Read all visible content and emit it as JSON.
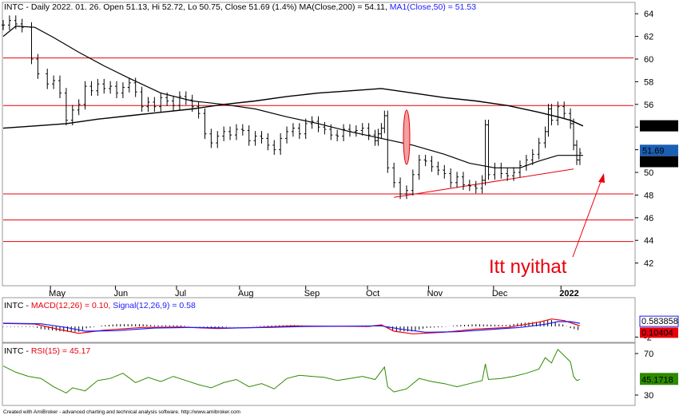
{
  "header": {
    "price": "INTC - Daily 2022. 01. 26. Open 51.13, Hi 52.72, Lo 50.75, Close 51.69 (1.4%) MA(Close,200) = 54.11, ",
    "ma50": "MA1(Close,50) = 51.53"
  },
  "macd_header": {
    "prefix": "INTC - ",
    "macd": "MACD(12,26) = 0.10, ",
    "signal": "Signal(12,26,9) = 0.58"
  },
  "rsi_header": {
    "prefix": "INTC - ",
    "rsi": "RSI(15) = 45.17"
  },
  "annotation": "Itt nyithat",
  "footer": "Created with AmiBroker - advanced charting and technical analysis software. http://www.amibroker.com",
  "colors": {
    "price_bars": "#000000",
    "ma": "#000000",
    "lines": "#e8000b",
    "macd": "#e8000b",
    "signal": "#1a1aff",
    "rsi": "#2e8b00",
    "ma200_label_bg": "#000000",
    "close_label_bg": "#1a5fb4",
    "ma50_label_bg": "#000000"
  },
  "chart_data": [
    {
      "type": "candlestick",
      "ylim": [
        40,
        65
      ],
      "yticks": [
        42,
        44,
        46,
        48,
        50,
        52,
        54,
        56,
        58,
        60,
        62,
        64
      ],
      "months": [
        "May",
        "Jun",
        "Jul",
        "Aug",
        "Sep",
        "Oct",
        "Nov",
        "Dec",
        "2022"
      ],
      "horizontal_lines": [
        60.1,
        55.9,
        48.1,
        45.8,
        43.9
      ],
      "trendline": [
        [
          0.62,
          47.8
        ],
        [
          0.905,
          50.3
        ]
      ],
      "ma200": [
        [
          0.0,
          53.9
        ],
        [
          0.05,
          54.1
        ],
        [
          0.1,
          54.3
        ],
        [
          0.15,
          54.7
        ],
        [
          0.2,
          55.0
        ],
        [
          0.25,
          55.3
        ],
        [
          0.3,
          55.6
        ],
        [
          0.35,
          56.0
        ],
        [
          0.4,
          56.3
        ],
        [
          0.45,
          56.7
        ],
        [
          0.5,
          57.0
        ],
        [
          0.55,
          57.2
        ],
        [
          0.6,
          57.4
        ],
        [
          0.65,
          57.0
        ],
        [
          0.7,
          56.6
        ],
        [
          0.75,
          56.3
        ],
        [
          0.8,
          55.9
        ],
        [
          0.85,
          55.3
        ],
        [
          0.88,
          54.9
        ],
        [
          0.9,
          54.6
        ],
        [
          0.92,
          54.1
        ]
      ],
      "ma50": [
        [
          0.0,
          62.0
        ],
        [
          0.02,
          62.9
        ],
        [
          0.05,
          62.8
        ],
        [
          0.08,
          61.9
        ],
        [
          0.12,
          60.6
        ],
        [
          0.16,
          59.4
        ],
        [
          0.2,
          58.3
        ],
        [
          0.25,
          57.0
        ],
        [
          0.3,
          56.3
        ],
        [
          0.35,
          56.0
        ],
        [
          0.4,
          55.6
        ],
        [
          0.45,
          54.9
        ],
        [
          0.5,
          54.3
        ],
        [
          0.55,
          53.6
        ],
        [
          0.6,
          53.0
        ],
        [
          0.65,
          52.4
        ],
        [
          0.7,
          51.6
        ],
        [
          0.74,
          50.8
        ],
        [
          0.78,
          50.4
        ],
        [
          0.82,
          50.4
        ],
        [
          0.85,
          51.0
        ],
        [
          0.88,
          51.5
        ],
        [
          0.92,
          51.5
        ]
      ],
      "close": [
        [
          0.0,
          63.0
        ],
        [
          0.01,
          63.4
        ],
        [
          0.02,
          63.1
        ],
        [
          0.03,
          62.8
        ],
        [
          0.045,
          60.0
        ],
        [
          0.055,
          58.7
        ],
        [
          0.07,
          57.8
        ],
        [
          0.08,
          58.1
        ],
        [
          0.09,
          57.0
        ],
        [
          0.1,
          54.6
        ],
        [
          0.11,
          55.5
        ],
        [
          0.12,
          56.0
        ],
        [
          0.13,
          57.6
        ],
        [
          0.14,
          57.2
        ],
        [
          0.15,
          57.8
        ],
        [
          0.16,
          57.4
        ],
        [
          0.17,
          57.6
        ],
        [
          0.18,
          57.0
        ],
        [
          0.19,
          57.5
        ],
        [
          0.2,
          57.9
        ],
        [
          0.21,
          57.1
        ],
        [
          0.22,
          55.8
        ],
        [
          0.23,
          56.2
        ],
        [
          0.24,
          55.8
        ],
        [
          0.25,
          56.6
        ],
        [
          0.26,
          56.3
        ],
        [
          0.27,
          55.9
        ],
        [
          0.28,
          56.7
        ],
        [
          0.29,
          56.4
        ],
        [
          0.3,
          55.8
        ],
        [
          0.31,
          55.2
        ],
        [
          0.32,
          53.4
        ],
        [
          0.33,
          52.6
        ],
        [
          0.34,
          53.2
        ],
        [
          0.35,
          53.6
        ],
        [
          0.36,
          53.3
        ],
        [
          0.37,
          53.8
        ],
        [
          0.38,
          53.7
        ],
        [
          0.39,
          52.8
        ],
        [
          0.4,
          53.2
        ],
        [
          0.41,
          53.0
        ],
        [
          0.42,
          52.4
        ],
        [
          0.43,
          52.0
        ],
        [
          0.44,
          53.0
        ],
        [
          0.45,
          53.6
        ],
        [
          0.46,
          53.9
        ],
        [
          0.47,
          53.4
        ],
        [
          0.48,
          54.3
        ],
        [
          0.49,
          54.5
        ],
        [
          0.5,
          54.0
        ],
        [
          0.51,
          53.8
        ],
        [
          0.52,
          53.3
        ],
        [
          0.53,
          53.2
        ],
        [
          0.54,
          53.8
        ],
        [
          0.55,
          53.6
        ],
        [
          0.56,
          53.7
        ],
        [
          0.57,
          53.9
        ],
        [
          0.58,
          53.3
        ],
        [
          0.59,
          52.8
        ],
        [
          0.595,
          53.4
        ],
        [
          0.6,
          53.9
        ],
        [
          0.605,
          55.0
        ],
        [
          0.61,
          50.4
        ],
        [
          0.62,
          49.1
        ],
        [
          0.63,
          48.1
        ],
        [
          0.64,
          48.4
        ],
        [
          0.65,
          49.8
        ],
        [
          0.66,
          51.1
        ],
        [
          0.67,
          51.0
        ],
        [
          0.68,
          50.5
        ],
        [
          0.69,
          50.2
        ],
        [
          0.7,
          49.9
        ],
        [
          0.71,
          49.1
        ],
        [
          0.72,
          49.6
        ],
        [
          0.73,
          48.9
        ],
        [
          0.74,
          48.8
        ],
        [
          0.75,
          48.6
        ],
        [
          0.76,
          49.3
        ],
        [
          0.765,
          54.2
        ],
        [
          0.77,
          49.8
        ],
        [
          0.78,
          50.4
        ],
        [
          0.79,
          49.9
        ],
        [
          0.8,
          49.7
        ],
        [
          0.81,
          50.0
        ],
        [
          0.82,
          50.6
        ],
        [
          0.83,
          51.1
        ],
        [
          0.84,
          51.6
        ],
        [
          0.85,
          52.6
        ],
        [
          0.86,
          53.6
        ],
        [
          0.865,
          55.6
        ],
        [
          0.87,
          54.6
        ],
        [
          0.88,
          55.8
        ],
        [
          0.89,
          55.2
        ],
        [
          0.9,
          54.3
        ],
        [
          0.905,
          52.4
        ],
        [
          0.91,
          51.1
        ],
        [
          0.915,
          51.7
        ]
      ]
    },
    {
      "type": "line",
      "series": [
        {
          "name": "MACD(12,26)",
          "values": [
            [
              0.0,
              0.55
            ],
            [
              0.05,
              0.45
            ],
            [
              0.09,
              -0.6
            ],
            [
              0.12,
              -1.3
            ],
            [
              0.16,
              -0.7
            ],
            [
              0.22,
              -0.2
            ],
            [
              0.28,
              -0.1
            ],
            [
              0.34,
              -0.4
            ],
            [
              0.4,
              -0.2
            ],
            [
              0.46,
              0.1
            ],
            [
              0.52,
              0.05
            ],
            [
              0.58,
              0.0
            ],
            [
              0.6,
              0.3
            ],
            [
              0.62,
              -0.9
            ],
            [
              0.65,
              -1.4
            ],
            [
              0.7,
              -1.1
            ],
            [
              0.75,
              -0.5
            ],
            [
              0.8,
              -0.2
            ],
            [
              0.85,
              0.8
            ],
            [
              0.87,
              1.4
            ],
            [
              0.89,
              1.1
            ],
            [
              0.91,
              0.3
            ],
            [
              0.915,
              0.1
            ]
          ]
        },
        {
          "name": "Signal(12,26,9)",
          "values": [
            [
              0.0,
              0.6
            ],
            [
              0.06,
              0.5
            ],
            [
              0.1,
              -0.2
            ],
            [
              0.13,
              -0.9
            ],
            [
              0.18,
              -0.8
            ],
            [
              0.24,
              -0.3
            ],
            [
              0.3,
              -0.2
            ],
            [
              0.36,
              -0.3
            ],
            [
              0.42,
              -0.2
            ],
            [
              0.48,
              0.0
            ],
            [
              0.54,
              0.05
            ],
            [
              0.6,
              0.1
            ],
            [
              0.63,
              -0.5
            ],
            [
              0.67,
              -1.1
            ],
            [
              0.72,
              -1.0
            ],
            [
              0.77,
              -0.6
            ],
            [
              0.82,
              -0.2
            ],
            [
              0.86,
              0.4
            ],
            [
              0.88,
              0.9
            ],
            [
              0.9,
              0.9
            ],
            [
              0.915,
              0.58
            ]
          ]
        }
      ],
      "ylim": [
        -3,
        3
      ],
      "yticks": [
        -2
      ],
      "labels": [
        "0.583858",
        "0.10404"
      ]
    },
    {
      "type": "line",
      "series": [
        {
          "name": "RSI(15)",
          "values": [
            [
              0.0,
              58
            ],
            [
              0.02,
              52
            ],
            [
              0.04,
              48
            ],
            [
              0.06,
              46
            ],
            [
              0.08,
              38
            ],
            [
              0.1,
              32
            ],
            [
              0.11,
              37
            ],
            [
              0.13,
              34
            ],
            [
              0.15,
              44
            ],
            [
              0.17,
              46
            ],
            [
              0.19,
              51
            ],
            [
              0.21,
              42
            ],
            [
              0.23,
              47
            ],
            [
              0.25,
              43
            ],
            [
              0.27,
              48
            ],
            [
              0.29,
              44
            ],
            [
              0.31,
              40
            ],
            [
              0.33,
              37
            ],
            [
              0.35,
              42
            ],
            [
              0.37,
              45
            ],
            [
              0.39,
              38
            ],
            [
              0.41,
              41
            ],
            [
              0.43,
              36
            ],
            [
              0.45,
              46
            ],
            [
              0.47,
              49
            ],
            [
              0.49,
              48
            ],
            [
              0.51,
              47
            ],
            [
              0.53,
              44
            ],
            [
              0.55,
              46
            ],
            [
              0.57,
              48
            ],
            [
              0.59,
              45
            ],
            [
              0.605,
              57
            ],
            [
              0.61,
              38
            ],
            [
              0.62,
              33
            ],
            [
              0.64,
              36
            ],
            [
              0.66,
              46
            ],
            [
              0.68,
              43
            ],
            [
              0.7,
              41
            ],
            [
              0.72,
              38
            ],
            [
              0.74,
              41
            ],
            [
              0.76,
              44
            ],
            [
              0.765,
              60
            ],
            [
              0.77,
              45
            ],
            [
              0.79,
              46
            ],
            [
              0.81,
              48
            ],
            [
              0.83,
              51
            ],
            [
              0.85,
              55
            ],
            [
              0.86,
              66
            ],
            [
              0.87,
              61
            ],
            [
              0.88,
              74
            ],
            [
              0.89,
              68
            ],
            [
              0.9,
              62
            ],
            [
              0.905,
              48
            ],
            [
              0.91,
              44
            ],
            [
              0.915,
              45
            ]
          ]
        }
      ],
      "ylim": [
        20,
        80
      ],
      "yticks": [
        30,
        50,
        70
      ],
      "labels": [
        "45.1718"
      ]
    }
  ],
  "price_labels": {
    "ma200": "54.1136",
    "close": "51.69",
    "ma50": "51.5252"
  }
}
